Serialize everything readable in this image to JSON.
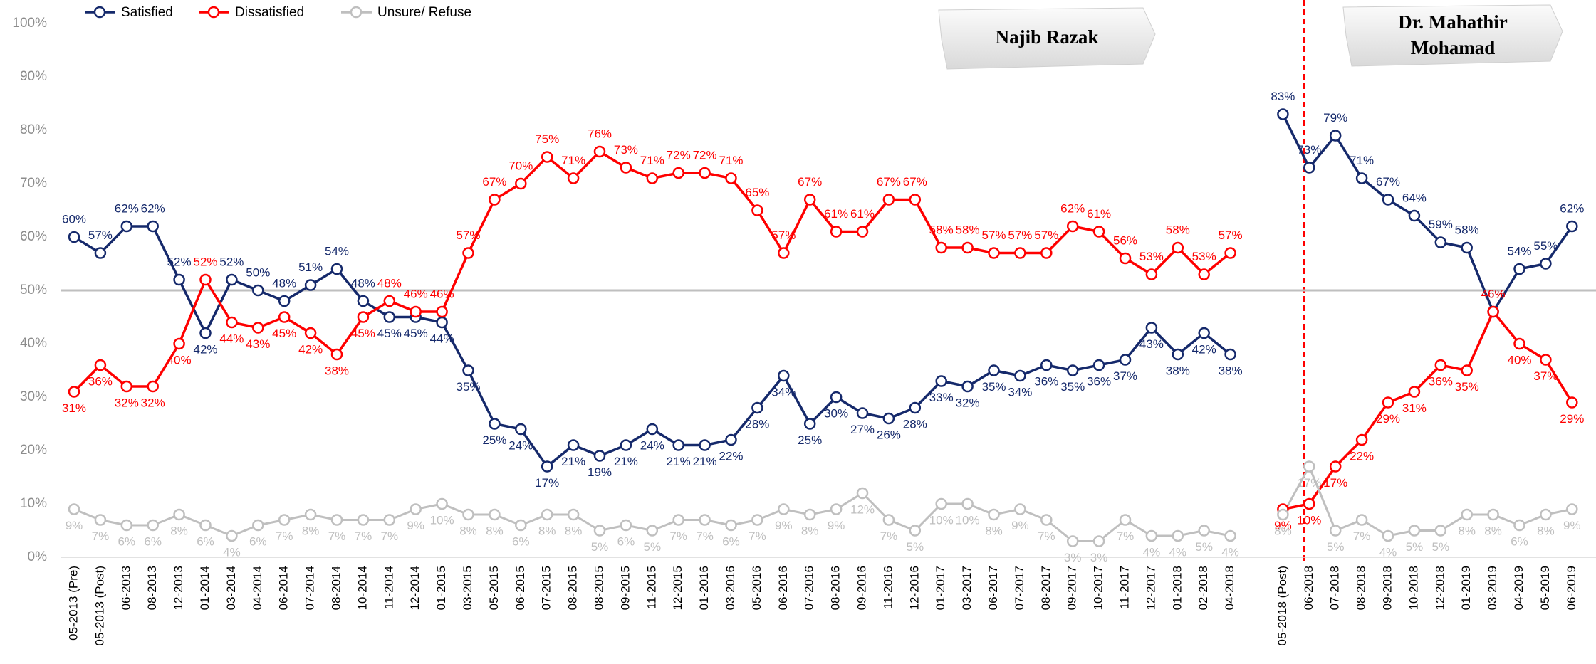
{
  "chart_data": {
    "type": "line",
    "categories": [
      "05-2013 (Pre)",
      "05-2013 (Post)",
      "06-2013",
      "08-2013",
      "12-2013",
      "01-2014",
      "03-2014",
      "04-2014",
      "06-2014",
      "07-2014",
      "08-2014",
      "10-2014",
      "11-2014",
      "12-2014",
      "01-2015",
      "03-2015",
      "05-2015",
      "06-2015",
      "07-2015",
      "08-2015",
      "08-2015",
      "09-2015",
      "11-2015",
      "12-2015",
      "01-2016",
      "03-2016",
      "05-2016",
      "06-2016",
      "07-2016",
      "08-2016",
      "09-2016",
      "11-2016",
      "12-2016",
      "01-2017",
      "03-2017",
      "06-2017",
      "07-2017",
      "08-2017",
      "09-2017",
      "10-2017",
      "11-2017",
      "12-2017",
      "01-2018",
      "02-2018",
      "04-2018",
      null,
      "05-2018 (Post)",
      "06-2018",
      "07-2018",
      "08-2018",
      "09-2018",
      "10-2018",
      "12-2018",
      "01-2019",
      "03-2019",
      "04-2019",
      "05-2019",
      "06-2019"
    ],
    "series": [
      {
        "name": "Satisfied",
        "color": "#15296b",
        "values": [
          60,
          57,
          62,
          62,
          52,
          42,
          52,
          50,
          48,
          51,
          54,
          48,
          45,
          45,
          44,
          35,
          25,
          24,
          17,
          21,
          19,
          21,
          24,
          21,
          21,
          22,
          28,
          34,
          25,
          30,
          27,
          26,
          28,
          33,
          32,
          35,
          34,
          36,
          35,
          36,
          37,
          43,
          38,
          42,
          38,
          null,
          83,
          73,
          79,
          71,
          67,
          64,
          59,
          58,
          46,
          54,
          55,
          62
        ],
        "value_labels": [
          "60%",
          "57%",
          "62%",
          "62%",
          "52%",
          "42%",
          "52%",
          "50%",
          "48%",
          "51%",
          "54%",
          "48%",
          "45%",
          "45%",
          "44%",
          "35%",
          "25%",
          "24%",
          "17%",
          "21%",
          "19%",
          "21%",
          "24%",
          "21%",
          "21%",
          "22%",
          "28%",
          "34%",
          "25%",
          "30%",
          "27%",
          "26%",
          "28%",
          "33%",
          "32%",
          "35%",
          "34%",
          "36%",
          "35%",
          "36%",
          "37%",
          "43%",
          "38%",
          "42%",
          "38%",
          null,
          "83%",
          "73%",
          "79%",
          "71%",
          "67%",
          "64%",
          "59%",
          "58%",
          "46%",
          "54%",
          "55%",
          "62%"
        ]
      },
      {
        "name": "Dissatisfied",
        "color": "#ff0000",
        "values": [
          31,
          36,
          32,
          32,
          40,
          52,
          44,
          43,
          45,
          42,
          38,
          45,
          48,
          46,
          46,
          57,
          67,
          70,
          75,
          71,
          76,
          73,
          71,
          72,
          72,
          71,
          65,
          57,
          67,
          61,
          61,
          67,
          67,
          58,
          58,
          57,
          57,
          57,
          62,
          61,
          56,
          53,
          58,
          53,
          57,
          null,
          9,
          10,
          17,
          22,
          29,
          31,
          36,
          35,
          46,
          40,
          37,
          29
        ],
        "value_labels": [
          "31%",
          "36%",
          "32%",
          "32%",
          "40%",
          "52%",
          "44%",
          "43%",
          "45%",
          "42%",
          "38%",
          "45%",
          "48%",
          "46%",
          "46%",
          "57%",
          "67%",
          "70%",
          "75%",
          "71%",
          "76%",
          "73%",
          "71%",
          "72%",
          "72%",
          "71%",
          "65%",
          "57%",
          "67%",
          "61%",
          "61%",
          "67%",
          "67%",
          "58%",
          "58%",
          "57%",
          "57%",
          "57%",
          "62%",
          "61%",
          "56%",
          "53%",
          "58%",
          "53%",
          "57%",
          null,
          "9%",
          "10%",
          "17%",
          "22%",
          "29%",
          "31%",
          "36%",
          "35%",
          "46%",
          "40%",
          "37%",
          "29%"
        ]
      },
      {
        "name": "Unsure/ Refuse",
        "color": "#bfbfbf",
        "values": [
          9,
          7,
          6,
          6,
          8,
          6,
          4,
          6,
          7,
          8,
          7,
          7,
          7,
          9,
          10,
          8,
          8,
          6,
          8,
          8,
          5,
          6,
          5,
          7,
          7,
          6,
          7,
          9,
          8,
          9,
          12,
          7,
          5,
          10,
          10,
          8,
          9,
          7,
          3,
          3,
          7,
          4,
          4,
          5,
          4,
          null,
          8,
          17,
          5,
          7,
          4,
          5,
          5,
          8,
          8,
          6,
          8,
          9
        ],
        "value_labels": [
          "9%",
          "7%",
          "6%",
          "6%",
          "8%",
          "6%",
          "4%",
          "6%",
          "7%",
          "8%",
          "7%",
          "7%",
          "7%",
          "9%",
          "10%",
          "8%",
          "8%",
          "6%",
          "8%",
          "8%",
          "5%",
          "6%",
          "5%",
          "7%",
          "7%",
          "6%",
          "7%",
          "9%",
          "8%",
          "9%",
          "12%",
          "7%",
          "5%",
          "10%",
          "10%",
          "8%",
          "9%",
          "7%",
          "3%",
          "3%",
          "7%",
          "4%",
          "4%",
          "5%",
          "4%",
          null,
          "8%",
          "17%",
          "5%",
          "7%",
          "4%",
          "5%",
          "5%",
          "8%",
          "8%",
          "6%",
          "8%",
          "9%"
        ]
      }
    ],
    "ylim": [
      0,
      100
    ],
    "yticks": [
      {
        "value": 0,
        "label": "0%"
      },
      {
        "value": 10,
        "label": "10%"
      },
      {
        "value": 20,
        "label": "20%"
      },
      {
        "value": 30,
        "label": "30%"
      },
      {
        "value": 40,
        "label": "40%"
      },
      {
        "value": 50,
        "label": "50%"
      },
      {
        "value": 60,
        "label": "60%"
      },
      {
        "value": 70,
        "label": "70%"
      },
      {
        "value": 80,
        "label": "80%"
      },
      {
        "value": 90,
        "label": "90%"
      },
      {
        "value": 100,
        "label": "100%"
      }
    ],
    "hline": 50,
    "grid": false,
    "legend": "top-left",
    "annotations": [
      {
        "text": "Najib Razak"
      },
      {
        "lines": [
          "Dr. Mahathir",
          "Mohamad"
        ]
      }
    ]
  }
}
